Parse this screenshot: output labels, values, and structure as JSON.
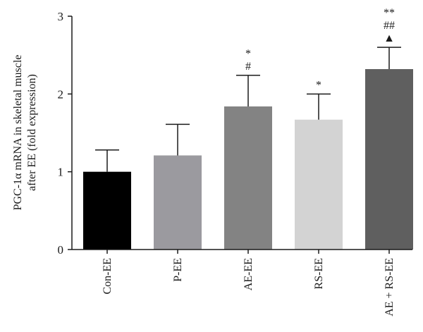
{
  "chart_data": {
    "type": "bar",
    "title": "",
    "xlabel": "",
    "ylabel_lines": [
      "PGC-1α mRNA in skeletal muscle",
      "after EE (fold expression)"
    ],
    "ylim": [
      0,
      3
    ],
    "yticks": [
      0,
      1,
      2,
      3
    ],
    "grid": false,
    "categories": [
      "Con-EE",
      "P-EE",
      "AE-EE",
      "RS-EE",
      "AE + RS-EE"
    ],
    "values": [
      1.0,
      1.21,
      1.84,
      1.67,
      2.32
    ],
    "errors": [
      0.28,
      0.4,
      0.4,
      0.33,
      0.28
    ],
    "colors": [
      "#000000",
      "#9b9a9f",
      "#838383",
      "#d3d3d3",
      "#5f5f5f"
    ],
    "annotations": [
      [],
      [],
      [
        "#",
        "*"
      ],
      [
        "*"
      ],
      [
        "▲",
        "##",
        "**"
      ]
    ]
  }
}
